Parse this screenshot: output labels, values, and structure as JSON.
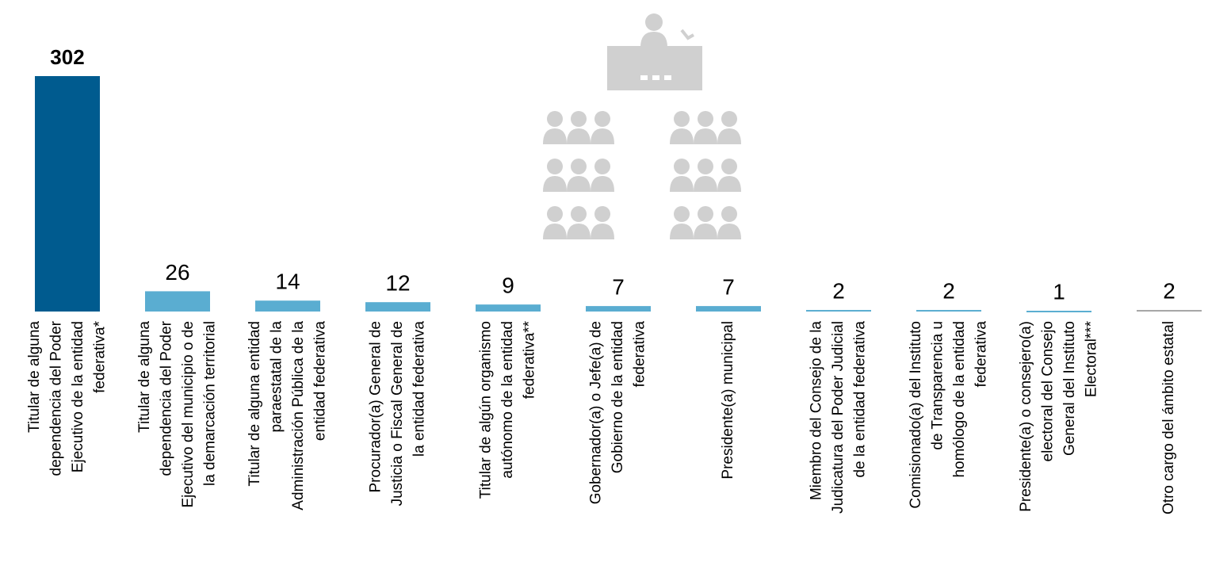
{
  "chart_data": {
    "type": "bar",
    "categories": [
      [
        "Titular de alguna",
        "dependencia del Poder",
        "Ejecutivo de la entidad",
        "federativa*"
      ],
      [
        "Titular de alguna",
        "dependencia del Poder",
        "Ejecutivo del municipio o de",
        "la demarcación territorial"
      ],
      [
        "Titular de alguna entidad",
        "paraestatal de la",
        "Administración Pública de la",
        "entidad federativa"
      ],
      [
        "Procurador(a) General de",
        "Justicia o Fiscal General de",
        "la entidad federativa"
      ],
      [
        "Titular de algún organismo",
        "autónomo de la entidad",
        "federativa**"
      ],
      [
        "Gobernador(a) o Jefe(a) de",
        "Gobierno de la entidad",
        "federativa"
      ],
      [
        "Presidente(a) municipal"
      ],
      [
        "Miembro del Consejo de la",
        "Judicatura del Poder Judicial",
        "de la entidad federativa"
      ],
      [
        "Comisionado(a) del Instituto",
        "de Transparencia u",
        "homólogo de la entidad",
        "federativa"
      ],
      [
        "Presidente(a) o consejero(a)",
        "electoral del Consejo",
        "General del Instituto",
        "Electoral***"
      ],
      [
        "Otro cargo del ámbito estatal"
      ]
    ],
    "values": [
      302,
      26,
      14,
      12,
      9,
      7,
      7,
      2,
      2,
      1,
      2
    ],
    "colors": [
      "#005b8f",
      "#5aadd1",
      "#5aadd1",
      "#5aadd1",
      "#5aadd1",
      "#5aadd1",
      "#5aadd1",
      "#5aadd1",
      "#5aadd1",
      "#5aadd1",
      "#a6a6a6"
    ],
    "ylim": [
      0,
      302
    ]
  }
}
